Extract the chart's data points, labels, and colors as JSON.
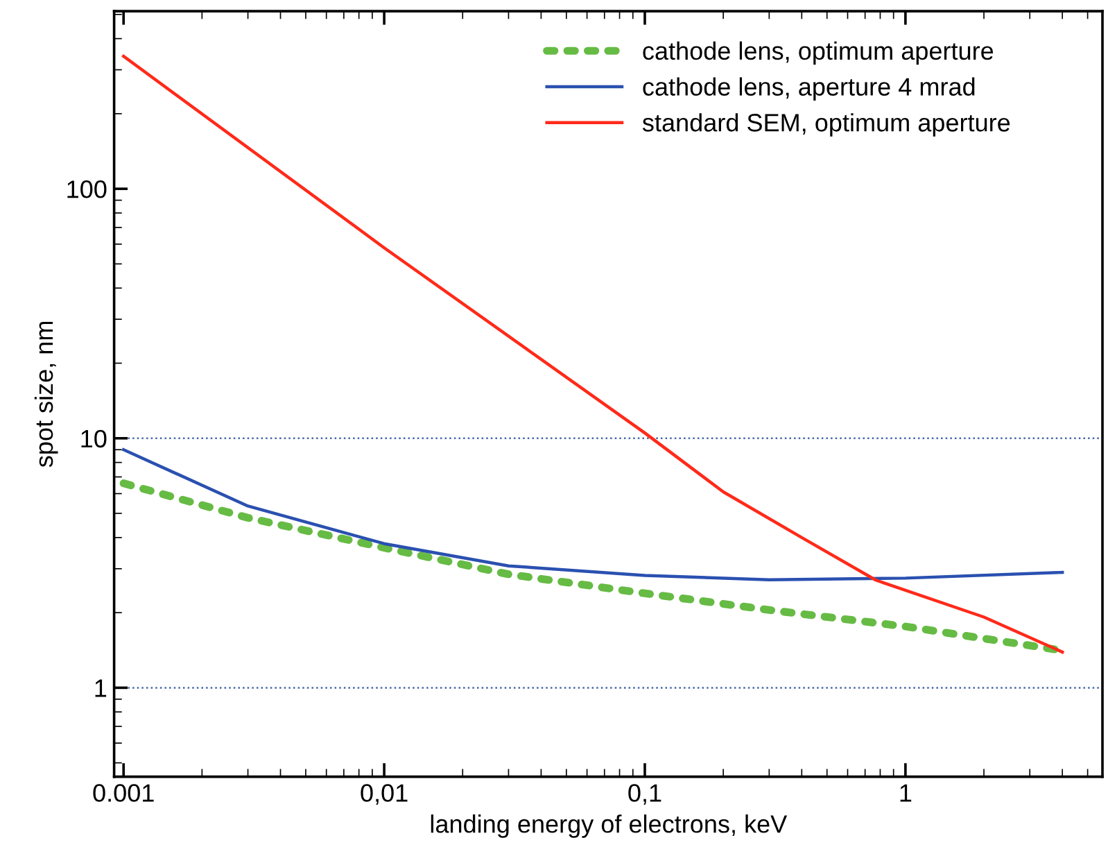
{
  "chart_data": {
    "type": "line",
    "xlabel": "landing energy of electrons, keV",
    "ylabel": "spot size, nm",
    "log": "xy",
    "xlim": [
      0.00092,
      5.7
    ],
    "ylim": [
      0.44,
      515
    ],
    "xticks": [
      {
        "value": 0.001,
        "label": "0.001"
      },
      {
        "value": 0.01,
        "label": "0,01"
      },
      {
        "value": 0.1,
        "label": "0,1"
      },
      1
    ],
    "yticks": [
      1,
      10,
      100
    ],
    "legend": "top right",
    "ref_lines": [
      {
        "axis": "y",
        "value": 1,
        "label": null,
        "color": "#4466aa",
        "line_style": "dotted"
      },
      {
        "axis": "y",
        "value": 10,
        "label": null,
        "color": "#4466aa",
        "line_style": "dotted"
      }
    ],
    "series": [
      {
        "name": "cathode lens, optimum aperture",
        "color": "#66bb44",
        "line_style": "dotted",
        "x": [
          0.001,
          0.003,
          0.01,
          0.03,
          0.1,
          0.3,
          1,
          4
        ],
        "values": [
          6.6,
          4.8,
          3.64,
          2.85,
          2.39,
          2.05,
          1.76,
          1.41
        ]
      },
      {
        "name": "cathode lens, aperture 4 mrad",
        "color": "#2a50b0",
        "line_style": "solid",
        "x": [
          0.001,
          0.003,
          0.01,
          0.03,
          0.1,
          0.3,
          1,
          4
        ],
        "values": [
          9.0,
          5.35,
          3.78,
          3.08,
          2.82,
          2.71,
          2.75,
          2.9
        ]
      },
      {
        "name": "standard SEM, optimum aperture",
        "color": "#ff2a1a",
        "line_style": "solid",
        "x": [
          0.001,
          0.01,
          0.1,
          0.2,
          0.4,
          0.77,
          2,
          4
        ],
        "values": [
          340,
          58,
          10.5,
          6.1,
          4.0,
          2.7,
          1.92,
          1.39
        ]
      }
    ]
  }
}
